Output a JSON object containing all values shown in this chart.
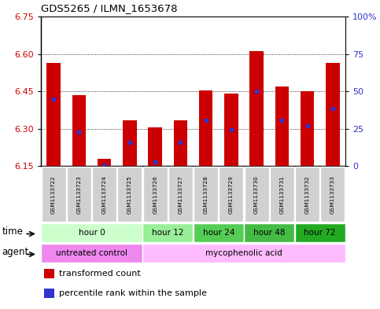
{
  "title": "GDS5265 / ILMN_1653678",
  "samples": [
    "GSM1133722",
    "GSM1133723",
    "GSM1133724",
    "GSM1133725",
    "GSM1133726",
    "GSM1133727",
    "GSM1133728",
    "GSM1133729",
    "GSM1133730",
    "GSM1133731",
    "GSM1133732",
    "GSM1133733"
  ],
  "bar_bottoms": [
    6.15,
    6.15,
    6.15,
    6.15,
    6.15,
    6.15,
    6.15,
    6.15,
    6.15,
    6.15,
    6.15,
    6.15
  ],
  "bar_tops": [
    6.565,
    6.435,
    6.18,
    6.335,
    6.305,
    6.335,
    6.455,
    6.44,
    6.61,
    6.47,
    6.45,
    6.565
  ],
  "percentile_values": [
    6.42,
    6.285,
    6.155,
    6.245,
    6.165,
    6.245,
    6.335,
    6.295,
    6.45,
    6.335,
    6.31,
    6.38
  ],
  "ylim_left": [
    6.15,
    6.75
  ],
  "ylim_right": [
    0,
    100
  ],
  "yticks_left": [
    6.15,
    6.3,
    6.45,
    6.6,
    6.75
  ],
  "yticks_right": [
    0,
    25,
    50,
    75,
    100
  ],
  "bar_color": "#cc0000",
  "percentile_color": "#3333cc",
  "grid_color": "#000000",
  "time_groups": [
    {
      "label": "hour 0",
      "start": 0,
      "end": 4,
      "color": "#ccffcc"
    },
    {
      "label": "hour 12",
      "start": 4,
      "end": 6,
      "color": "#99ee99"
    },
    {
      "label": "hour 24",
      "start": 6,
      "end": 8,
      "color": "#55cc55"
    },
    {
      "label": "hour 48",
      "start": 8,
      "end": 10,
      "color": "#44bb44"
    },
    {
      "label": "hour 72",
      "start": 10,
      "end": 12,
      "color": "#22aa22"
    }
  ],
  "agent_groups": [
    {
      "label": "untreated control",
      "start": 0,
      "end": 4,
      "color": "#ff88ff"
    },
    {
      "label": "mycophenolic acid",
      "start": 4,
      "end": 12,
      "color": "#ffbbff"
    }
  ],
  "legend_items": [
    {
      "label": "transformed count",
      "color": "#cc0000"
    },
    {
      "label": "percentile rank within the sample",
      "color": "#3333cc"
    }
  ],
  "time_label": "time",
  "agent_label": "agent",
  "bar_width": 0.55,
  "fig_bg": "#ffffff",
  "plot_bg": "#ffffff"
}
